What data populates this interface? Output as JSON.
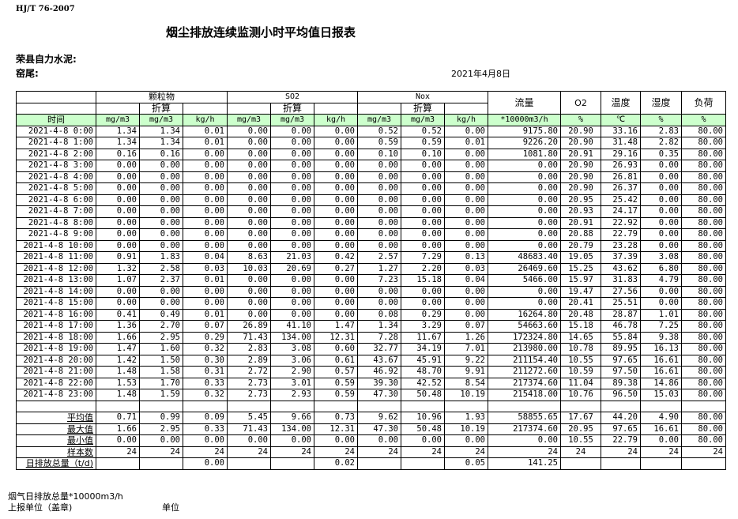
{
  "standard": "HJ/T  76-2007",
  "title": "烟尘排放连续监测小时平均值日报表",
  "company": "荣县自力水泥:",
  "kiln": "窑尾:",
  "date": "2021年4月8日",
  "header": {
    "groups": [
      "颗粒物",
      "SO2",
      "Nox"
    ],
    "converted": "折算",
    "flow": "流量",
    "o2": "O2",
    "temperature": "温度",
    "humidity": "湿度",
    "load": "负荷",
    "time": "时间",
    "units": [
      "mg/m3",
      "mg/m3",
      "kg/h",
      "mg/m3",
      "mg/m3",
      "kg/h",
      "mg/m3",
      "mg/m3",
      "kg/h",
      "*10000m3/h",
      "%",
      "℃",
      "%",
      "%"
    ]
  },
  "rows": [
    [
      "2021-4-8 0:00",
      "1.34",
      "1.34",
      "0.01",
      "0.00",
      "0.00",
      "0.00",
      "0.52",
      "0.52",
      "0.00",
      "9175.80",
      "20.90",
      "33.16",
      "2.83",
      "80.00"
    ],
    [
      "2021-4-8 1:00",
      "1.34",
      "1.34",
      "0.01",
      "0.00",
      "0.00",
      "0.00",
      "0.59",
      "0.59",
      "0.01",
      "9226.20",
      "20.90",
      "31.48",
      "2.82",
      "80.00"
    ],
    [
      "2021-4-8 2:00",
      "0.16",
      "0.16",
      "0.00",
      "0.00",
      "0.00",
      "0.00",
      "0.10",
      "0.10",
      "0.00",
      "1081.80",
      "20.91",
      "29.16",
      "0.35",
      "80.00"
    ],
    [
      "2021-4-8 3:00",
      "0.00",
      "0.00",
      "0.00",
      "0.00",
      "0.00",
      "0.00",
      "0.00",
      "0.00",
      "0.00",
      "0.00",
      "20.90",
      "26.93",
      "0.00",
      "80.00"
    ],
    [
      "2021-4-8 4:00",
      "0.00",
      "0.00",
      "0.00",
      "0.00",
      "0.00",
      "0.00",
      "0.00",
      "0.00",
      "0.00",
      "0.00",
      "20.90",
      "26.81",
      "0.00",
      "80.00"
    ],
    [
      "2021-4-8 5:00",
      "0.00",
      "0.00",
      "0.00",
      "0.00",
      "0.00",
      "0.00",
      "0.00",
      "0.00",
      "0.00",
      "0.00",
      "20.90",
      "26.37",
      "0.00",
      "80.00"
    ],
    [
      "2021-4-8 6:00",
      "0.00",
      "0.00",
      "0.00",
      "0.00",
      "0.00",
      "0.00",
      "0.00",
      "0.00",
      "0.00",
      "0.00",
      "20.95",
      "25.42",
      "0.00",
      "80.00"
    ],
    [
      "2021-4-8 7:00",
      "0.00",
      "0.00",
      "0.00",
      "0.00",
      "0.00",
      "0.00",
      "0.00",
      "0.00",
      "0.00",
      "0.00",
      "20.93",
      "24.17",
      "0.00",
      "80.00"
    ],
    [
      "2021-4-8 8:00",
      "0.00",
      "0.00",
      "0.00",
      "0.00",
      "0.00",
      "0.00",
      "0.00",
      "0.00",
      "0.00",
      "0.00",
      "20.91",
      "22.92",
      "0.00",
      "80.00"
    ],
    [
      "2021-4-8 9:00",
      "0.00",
      "0.00",
      "0.00",
      "0.00",
      "0.00",
      "0.00",
      "0.00",
      "0.00",
      "0.00",
      "0.00",
      "20.88",
      "22.79",
      "0.00",
      "80.00"
    ],
    [
      "2021-4-8 10:00",
      "0.00",
      "0.00",
      "0.00",
      "0.00",
      "0.00",
      "0.00",
      "0.00",
      "0.00",
      "0.00",
      "0.00",
      "20.79",
      "23.28",
      "0.00",
      "80.00"
    ],
    [
      "2021-4-8 11:00",
      "0.91",
      "1.83",
      "0.04",
      "8.63",
      "21.03",
      "0.42",
      "2.57",
      "7.29",
      "0.13",
      "48683.40",
      "19.05",
      "37.39",
      "3.08",
      "80.00"
    ],
    [
      "2021-4-8 12:00",
      "1.32",
      "2.58",
      "0.03",
      "10.03",
      "20.69",
      "0.27",
      "1.27",
      "2.20",
      "0.03",
      "26469.60",
      "15.25",
      "43.62",
      "6.80",
      "80.00"
    ],
    [
      "2021-4-8 13:00",
      "1.07",
      "2.37",
      "0.01",
      "0.00",
      "0.00",
      "0.00",
      "7.23",
      "15.18",
      "0.04",
      "5466.00",
      "15.97",
      "31.83",
      "4.79",
      "80.00"
    ],
    [
      "2021-4-8 14:00",
      "0.00",
      "0.00",
      "0.00",
      "0.00",
      "0.00",
      "0.00",
      "0.00",
      "0.00",
      "0.00",
      "0.00",
      "19.47",
      "27.56",
      "0.00",
      "80.00"
    ],
    [
      "2021-4-8 15:00",
      "0.00",
      "0.00",
      "0.00",
      "0.00",
      "0.00",
      "0.00",
      "0.00",
      "0.00",
      "0.00",
      "0.00",
      "20.41",
      "25.51",
      "0.00",
      "80.00"
    ],
    [
      "2021-4-8 16:00",
      "0.41",
      "0.49",
      "0.01",
      "0.00",
      "0.00",
      "0.00",
      "0.08",
      "0.29",
      "0.00",
      "16264.80",
      "20.48",
      "28.87",
      "1.01",
      "80.00"
    ],
    [
      "2021-4-8 17:00",
      "1.36",
      "2.70",
      "0.07",
      "26.89",
      "41.10",
      "1.47",
      "1.34",
      "3.29",
      "0.07",
      "54663.60",
      "15.18",
      "46.78",
      "7.25",
      "80.00"
    ],
    [
      "2021-4-8 18:00",
      "1.66",
      "2.95",
      "0.29",
      "71.43",
      "134.00",
      "12.31",
      "7.28",
      "11.67",
      "1.26",
      "172324.80",
      "14.65",
      "55.84",
      "9.38",
      "80.00"
    ],
    [
      "2021-4-8 19:00",
      "1.47",
      "1.60",
      "0.32",
      "2.83",
      "3.08",
      "0.60",
      "32.77",
      "34.19",
      "7.01",
      "213980.00",
      "10.78",
      "89.95",
      "16.13",
      "80.00"
    ],
    [
      "2021-4-8 20:00",
      "1.42",
      "1.50",
      "0.30",
      "2.89",
      "3.06",
      "0.61",
      "43.67",
      "45.91",
      "9.22",
      "211154.40",
      "10.55",
      "97.65",
      "16.61",
      "80.00"
    ],
    [
      "2021-4-8 21:00",
      "1.48",
      "1.58",
      "0.31",
      "2.72",
      "2.90",
      "0.57",
      "46.92",
      "48.70",
      "9.91",
      "211272.60",
      "10.59",
      "97.50",
      "16.61",
      "80.00"
    ],
    [
      "2021-4-8 22:00",
      "1.53",
      "1.70",
      "0.33",
      "2.73",
      "3.01",
      "0.59",
      "39.30",
      "42.52",
      "8.54",
      "217374.60",
      "11.04",
      "89.38",
      "14.86",
      "80.00"
    ],
    [
      "2021-4-8 23:00",
      "1.48",
      "1.59",
      "0.32",
      "2.73",
      "2.93",
      "0.59",
      "47.30",
      "50.48",
      "10.19",
      "215418.00",
      "10.76",
      "96.50",
      "15.03",
      "80.00"
    ]
  ],
  "summary": [
    [
      "平均值",
      "0.71",
      "0.99",
      "0.09",
      "5.45",
      "9.66",
      "0.73",
      "9.62",
      "10.96",
      "1.93",
      "58855.65",
      "17.67",
      "44.20",
      "4.90",
      "80.00"
    ],
    [
      "最大值",
      "1.66",
      "2.95",
      "0.33",
      "71.43",
      "134.00",
      "12.31",
      "47.30",
      "50.48",
      "10.19",
      "217374.60",
      "20.95",
      "97.65",
      "16.61",
      "80.00"
    ],
    [
      "最小值",
      "0.00",
      "0.00",
      "0.00",
      "0.00",
      "0.00",
      "0.00",
      "0.00",
      "0.00",
      "0.00",
      "0.00",
      "10.55",
      "22.79",
      "0.00",
      "80.00"
    ],
    [
      "样本数",
      "24",
      "24",
      "24",
      "24",
      "24",
      "24",
      "24",
      "24",
      "24",
      "24",
      "24",
      "24",
      "24",
      "24"
    ],
    [
      "日排放总量（t/d)",
      "",
      "",
      "0.00",
      "",
      "",
      "0.02",
      "",
      "",
      "0.05",
      "141.25",
      "",
      "",
      "",
      ""
    ]
  ],
  "footer": {
    "flue_gas_total": "烟气日排放总量*10000m3/h",
    "reporting_unit": "上报单位（盖章)",
    "unit": "单位"
  }
}
